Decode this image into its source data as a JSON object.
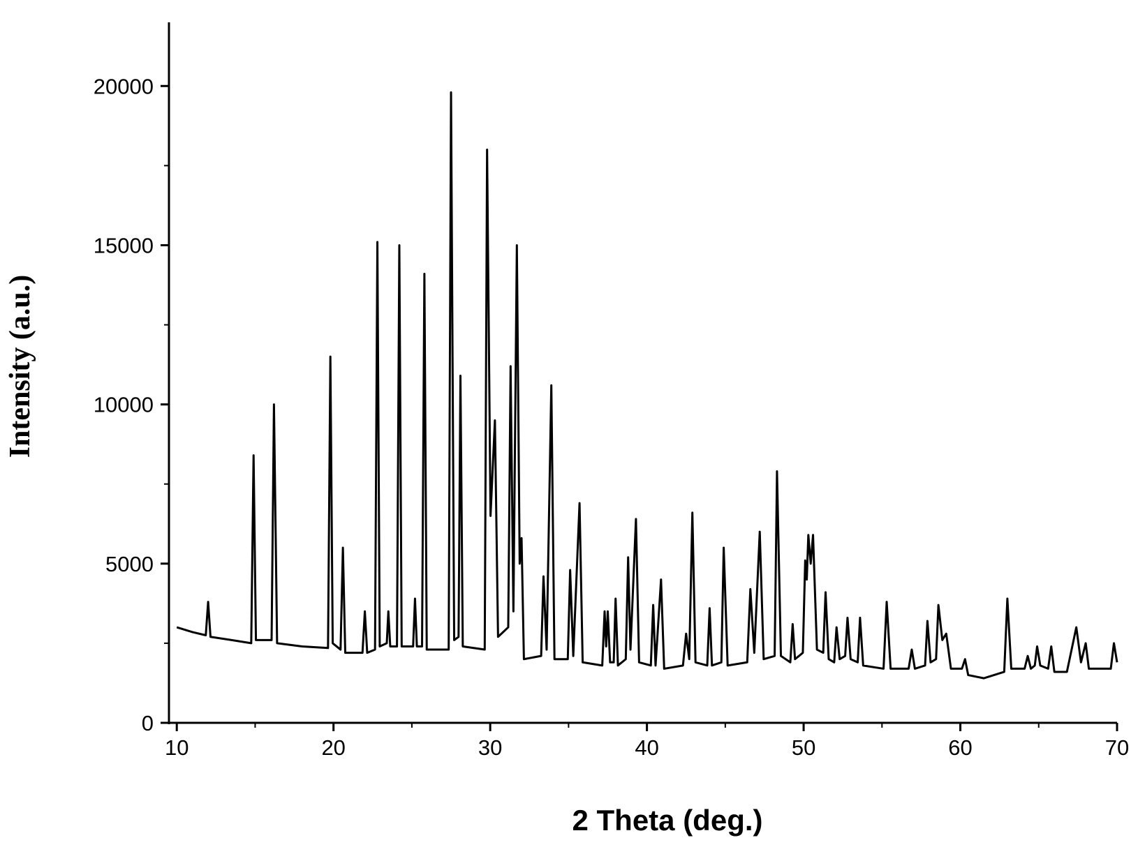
{
  "chart_data": {
    "type": "line",
    "xlabel": "2 Theta (deg.)",
    "ylabel": "Intensity (a.u.)",
    "color": "#000000",
    "xlim": [
      9.5,
      70
    ],
    "xticks": [
      10,
      20,
      30,
      40,
      50,
      60,
      70
    ],
    "ylim": [
      0,
      22000
    ],
    "yticks": [
      0,
      5000,
      10000,
      15000,
      20000
    ],
    "x": [
      10.0,
      11.0,
      11.85,
      12.0,
      12.15,
      13.5,
      14.75,
      14.9,
      15.05,
      16.05,
      16.2,
      16.4,
      18.0,
      19.65,
      19.8,
      19.95,
      20.45,
      20.6,
      20.75,
      21.85,
      22.0,
      22.15,
      22.65,
      22.8,
      22.95,
      23.4,
      23.5,
      23.62,
      24.05,
      24.2,
      24.35,
      25.08,
      25.2,
      25.32,
      25.65,
      25.8,
      25.95,
      27.35,
      27.5,
      27.7,
      27.98,
      28.1,
      28.25,
      29.65,
      29.8,
      30.02,
      30.3,
      30.5,
      31.15,
      31.3,
      31.48,
      31.7,
      31.88,
      32.0,
      32.15,
      33.25,
      33.4,
      33.6,
      33.9,
      34.1,
      34.95,
      35.1,
      35.3,
      35.7,
      35.9,
      37.15,
      37.3,
      37.4,
      37.5,
      37.65,
      37.88,
      38.0,
      38.15,
      38.65,
      38.8,
      38.95,
      39.3,
      39.5,
      40.25,
      40.4,
      40.55,
      40.9,
      41.1,
      42.3,
      42.5,
      42.7,
      42.9,
      43.1,
      43.85,
      44.0,
      44.15,
      44.75,
      44.9,
      45.15,
      46.4,
      46.6,
      46.85,
      47.2,
      47.45,
      48.15,
      48.3,
      48.55,
      49.15,
      49.3,
      49.45,
      49.95,
      50.1,
      50.2,
      50.3,
      50.45,
      50.6,
      50.85,
      51.25,
      51.4,
      51.6,
      51.95,
      52.1,
      52.3,
      52.65,
      52.8,
      53.0,
      53.45,
      53.6,
      53.8,
      55.1,
      55.3,
      55.55,
      56.7,
      56.9,
      57.1,
      57.75,
      57.9,
      58.1,
      58.45,
      58.6,
      58.85,
      59.1,
      59.4,
      60.1,
      60.3,
      60.5,
      61.5,
      62.8,
      63.0,
      63.25,
      64.1,
      64.3,
      64.5,
      64.75,
      64.9,
      65.1,
      65.6,
      65.8,
      66.0,
      66.8,
      67.4,
      67.7,
      68.0,
      68.2,
      69.0,
      69.6,
      69.8,
      70.0
    ],
    "values": [
      3000,
      2850,
      2750,
      3800,
      2700,
      2600,
      2500,
      8400,
      2600,
      2600,
      10000,
      2500,
      2400,
      2350,
      11500,
      2500,
      2300,
      5500,
      2200,
      2200,
      3500,
      2200,
      2300,
      15100,
      2400,
      2500,
      3500,
      2400,
      2400,
      15000,
      2400,
      2400,
      3900,
      2400,
      2400,
      14100,
      2300,
      2300,
      19800,
      2600,
      2700,
      10900,
      2400,
      2300,
      18000,
      6500,
      9500,
      2700,
      3000,
      11200,
      3500,
      15000,
      5000,
      5800,
      2000,
      2100,
      4600,
      2300,
      10600,
      2000,
      2000,
      4800,
      2100,
      6900,
      1900,
      1800,
      3500,
      2400,
      3500,
      1900,
      1900,
      3900,
      1800,
      2000,
      5200,
      2300,
      6400,
      1900,
      1800,
      3700,
      1800,
      4500,
      1700,
      1800,
      2800,
      2000,
      6600,
      1900,
      1800,
      3600,
      1800,
      1900,
      5500,
      1800,
      1900,
      4200,
      2200,
      6000,
      2000,
      2100,
      7900,
      2100,
      1900,
      3100,
      2000,
      2200,
      5100,
      4500,
      5900,
      5000,
      5900,
      2300,
      2200,
      4100,
      2000,
      1900,
      3000,
      2000,
      2100,
      3300,
      2000,
      1900,
      3300,
      1800,
      1700,
      3800,
      1700,
      1700,
      2300,
      1700,
      1800,
      3200,
      1900,
      2000,
      3700,
      2600,
      2800,
      1700,
      1700,
      2000,
      1500,
      1400,
      1600,
      3900,
      1700,
      1700,
      2100,
      1700,
      1800,
      2400,
      1800,
      1700,
      2400,
      1600,
      1600,
      3000,
      1900,
      2500,
      1700,
      1700,
      1700,
      2500,
      1900
    ]
  }
}
